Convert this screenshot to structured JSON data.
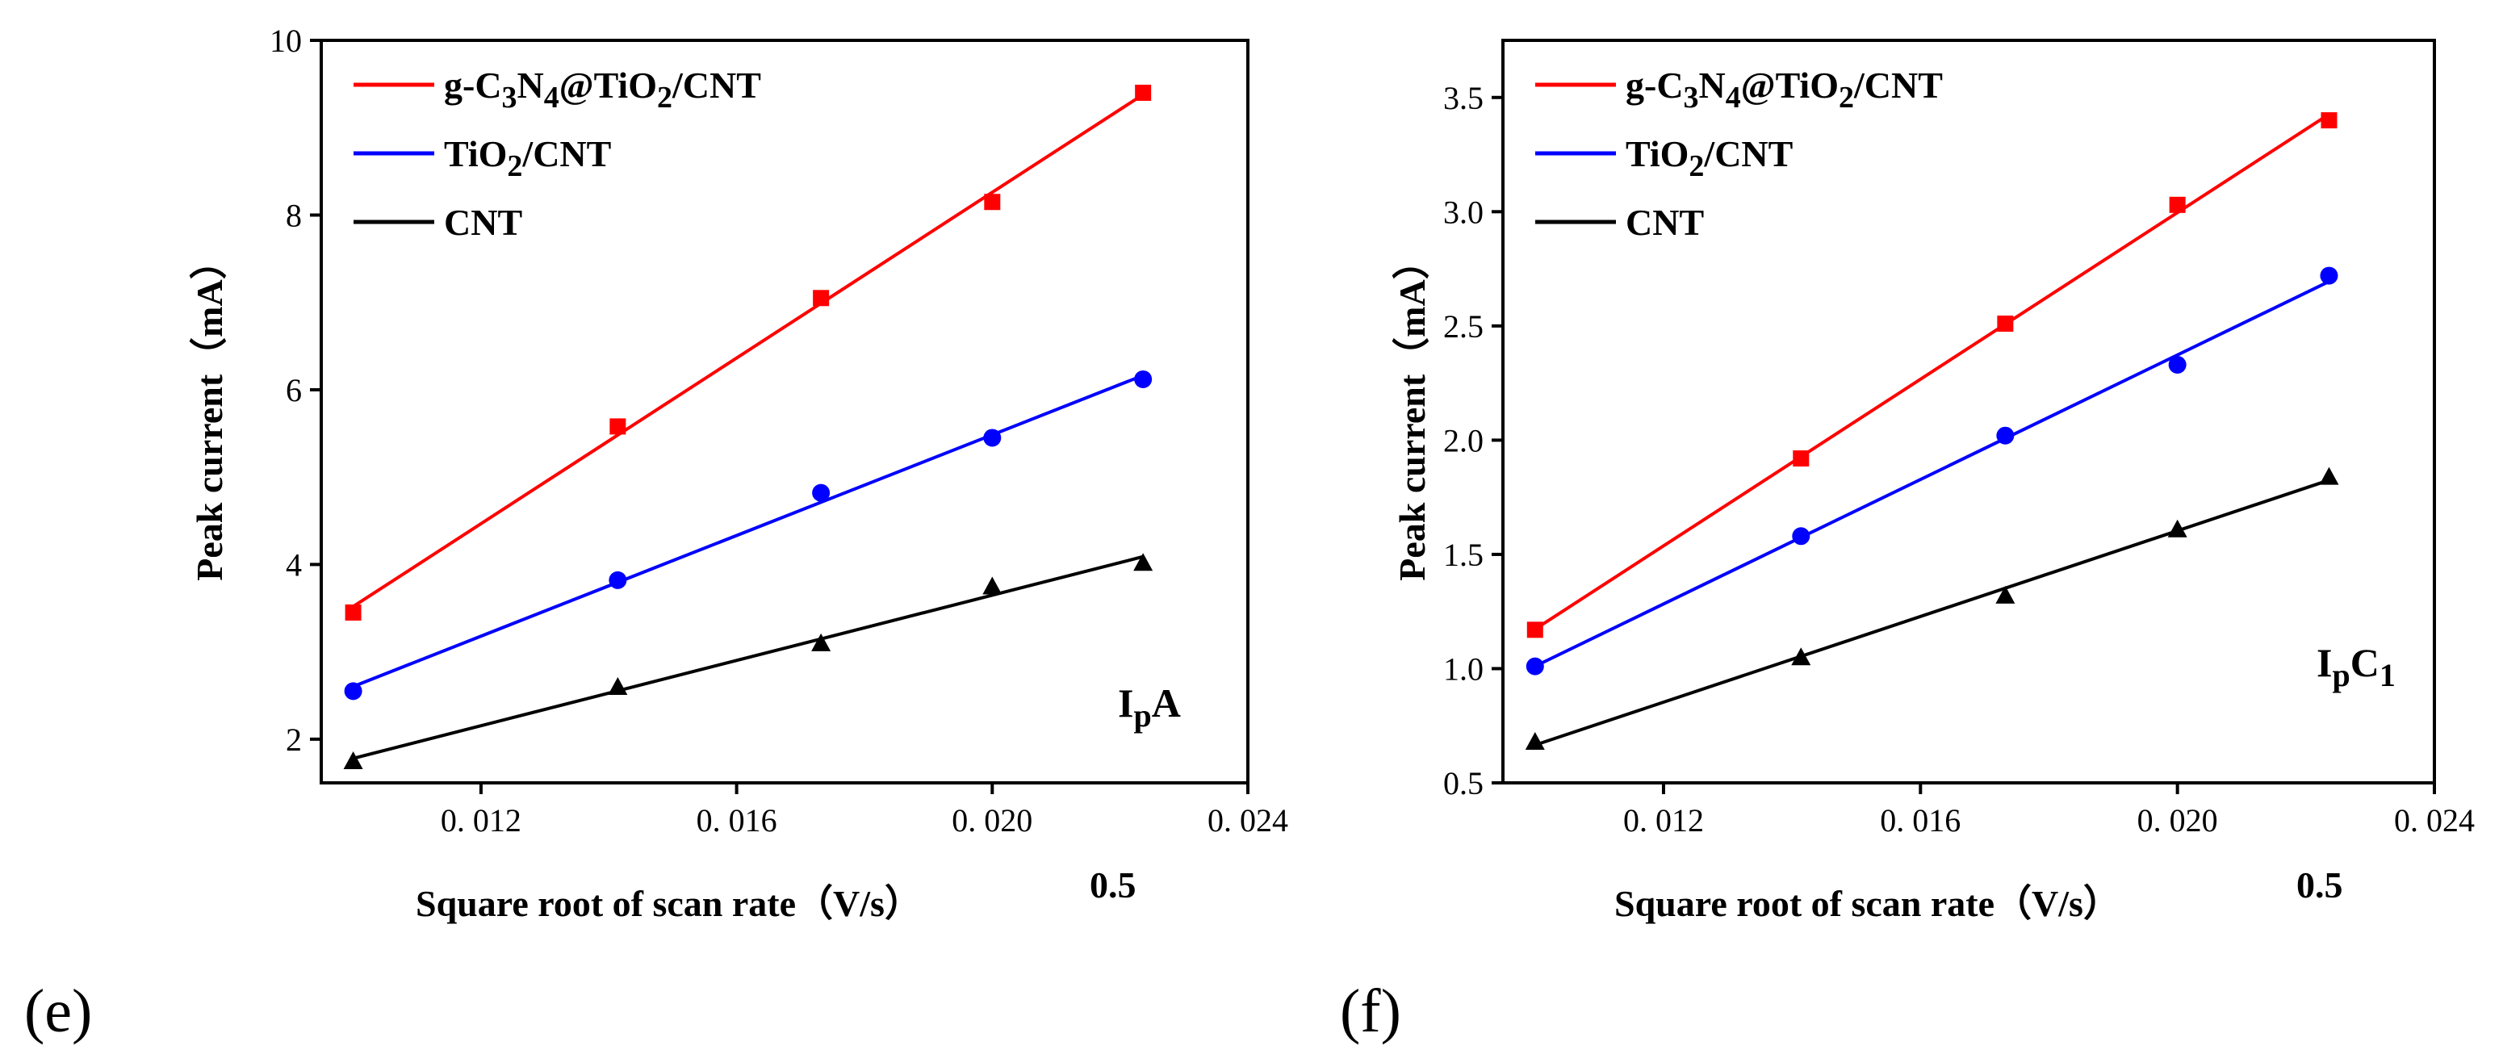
{
  "chart_data": [
    {
      "panel": "(e)",
      "type": "scatter",
      "xlabel": "Square root of scan rate（V/s）",
      "xlabel_exponent": "0.5",
      "ylabel": "Peak current（mA）",
      "annotation": "IpA",
      "xlim": [
        0.0095,
        0.024
      ],
      "ylim": [
        1.5,
        10
      ],
      "xticks": [
        0.012,
        0.016,
        0.02,
        0.024
      ],
      "xtick_labels": [
        "0. 012",
        "0. 016",
        "0. 020",
        "0. 024"
      ],
      "yticks": [
        2,
        4,
        6,
        8,
        10
      ],
      "ytick_labels": [
        "2",
        "4",
        "6",
        "8",
        "10"
      ],
      "series": [
        {
          "name": "g-C3N4@TiO2/CNT",
          "color": "#ff0000",
          "marker": "square",
          "x": [
            0.01,
            0.01414,
            0.01732,
            0.02,
            0.02236
          ],
          "y": [
            3.45,
            5.58,
            7.05,
            8.15,
            9.4
          ]
        },
        {
          "name": "TiO2/CNT",
          "color": "#0000ff",
          "marker": "circle",
          "x": [
            0.01,
            0.01414,
            0.01732,
            0.02,
            0.02236
          ],
          "y": [
            2.55,
            3.82,
            4.82,
            5.45,
            6.12
          ]
        },
        {
          "name": "CNT",
          "color": "#000000",
          "marker": "triangle",
          "x": [
            0.01,
            0.01414,
            0.01732,
            0.02,
            0.02236
          ],
          "y": [
            1.75,
            2.6,
            3.1,
            3.75,
            4.02
          ]
        }
      ]
    },
    {
      "panel": "(f)",
      "type": "scatter",
      "xlabel": "Square root of scan rate（V/s）",
      "xlabel_exponent": "0.5",
      "ylabel": "Peak current（mA）",
      "annotation": "IpC1",
      "xlim": [
        0.0095,
        0.024
      ],
      "ylim": [
        0.5,
        3.75
      ],
      "xticks": [
        0.012,
        0.016,
        0.02,
        0.024
      ],
      "xtick_labels": [
        "0. 012",
        "0. 016",
        "0. 020",
        "0. 024"
      ],
      "yticks": [
        0.5,
        1.0,
        1.5,
        2.0,
        2.5,
        3.0,
        3.5
      ],
      "ytick_labels": [
        "0.5",
        "1.0",
        "1.5",
        "2.0",
        "2.5",
        "3.0",
        "3.5"
      ],
      "series": [
        {
          "name": "g-C3N4@TiO2/CNT",
          "color": "#ff0000",
          "marker": "square",
          "x": [
            0.01,
            0.01414,
            0.01732,
            0.02,
            0.02236
          ],
          "y": [
            1.17,
            1.92,
            2.51,
            3.03,
            3.4
          ]
        },
        {
          "name": "TiO2/CNT",
          "color": "#0000ff",
          "marker": "circle",
          "x": [
            0.01,
            0.01414,
            0.01732,
            0.02,
            0.02236
          ],
          "y": [
            1.01,
            1.58,
            2.02,
            2.33,
            2.72
          ]
        },
        {
          "name": "CNT",
          "color": "#000000",
          "marker": "triangle",
          "x": [
            0.01,
            0.01414,
            0.01732,
            0.02,
            0.02236
          ],
          "y": [
            0.68,
            1.05,
            1.32,
            1.61,
            1.84
          ]
        }
      ]
    }
  ]
}
